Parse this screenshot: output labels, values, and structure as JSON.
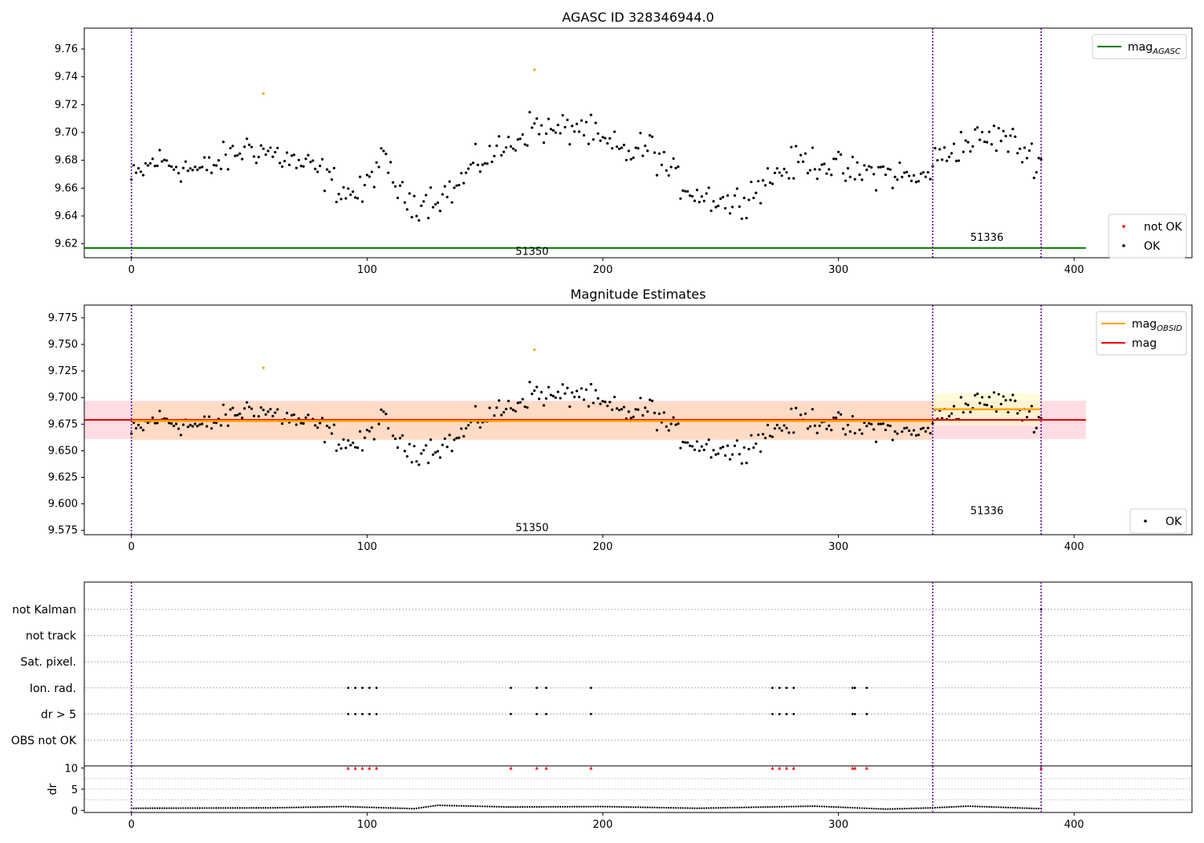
{
  "figure": {
    "panel1_title": "AGASC ID 328346944.0",
    "panel2_title": "Magnitude Estimates"
  },
  "colors": {
    "ok": "#000000",
    "not_ok": "#ff0000",
    "outlier": "#ffa500",
    "agasc": "#008000",
    "obs_mag": "#ffa500",
    "mag": "#ff0000",
    "vline": "#6a0dad",
    "band_global": "#ffc0cb",
    "band_obs1": "#ffdab9",
    "band_obs2": "#fffacd"
  },
  "chart_data": [
    {
      "id": "agasc",
      "type": "scatter",
      "title": "AGASC ID 328346944.0",
      "xlim": [
        -20,
        450
      ],
      "ylim": [
        9.61,
        9.775
      ],
      "xticks": [
        0,
        100,
        200,
        300,
        400
      ],
      "yticks": [
        9.62,
        9.64,
        9.66,
        9.68,
        9.7,
        9.72,
        9.74,
        9.76
      ],
      "ytick_decimals": 2,
      "agasc_mag": 9.617,
      "agasc_xrange": [
        -20,
        405
      ],
      "obsid_boundaries": [
        0,
        340,
        386
      ],
      "obsid_labels": [
        {
          "text": "51350",
          "x": 170,
          "y": 9.615
        },
        {
          "text": "51336",
          "x": 363,
          "y": 9.625
        }
      ],
      "series_ref": "samples",
      "outliers": [
        [
          56,
          9.728
        ],
        [
          171,
          9.745
        ]
      ],
      "legend_upper": [
        {
          "label": "mag",
          "sub": "AGASC",
          "kind": "line",
          "color": "#008000"
        }
      ],
      "legend_lower": [
        {
          "label": "not OK",
          "kind": "dot",
          "color": "#ff0000"
        },
        {
          "label": "OK",
          "kind": "dot",
          "color": "#000000"
        }
      ]
    },
    {
      "id": "estimates",
      "type": "scatter",
      "title": "Magnitude Estimates",
      "xlim": [
        -20,
        450
      ],
      "ylim": [
        9.571,
        9.787
      ],
      "xticks": [
        0,
        100,
        200,
        300,
        400
      ],
      "yticks": [
        9.575,
        9.6,
        9.625,
        9.65,
        9.675,
        9.7,
        9.725,
        9.75,
        9.775
      ],
      "ytick_decimals": 3,
      "global_mag": 9.679,
      "global_band": [
        9.661,
        9.697
      ],
      "global_xrange": [
        -20,
        405
      ],
      "obs_segments": [
        {
          "obsid": "51350",
          "x": [
            0,
            340
          ],
          "mag": 9.678,
          "band": [
            9.66,
            9.696
          ]
        },
        {
          "obsid": "51336",
          "x": [
            340,
            386
          ],
          "mag": 9.689,
          "band": [
            9.674,
            9.704
          ]
        }
      ],
      "obsid_boundaries": [
        0,
        340,
        386
      ],
      "obsid_labels": [
        {
          "text": "51350",
          "x": 170,
          "y": 9.578
        },
        {
          "text": "51336",
          "x": 363,
          "y": 9.594
        }
      ],
      "series_ref": "samples",
      "outliers": [
        [
          56,
          9.728
        ],
        [
          171,
          9.745
        ]
      ],
      "legend_upper": [
        {
          "label": "mag",
          "sub": "OBSID",
          "kind": "line",
          "color": "#ffa500"
        },
        {
          "label": "mag",
          "kind": "line",
          "color": "#ff0000"
        }
      ],
      "legend_lower": [
        {
          "label": "OK",
          "kind": "dot",
          "color": "#000000"
        }
      ]
    },
    {
      "id": "flags",
      "type": "scatter",
      "xlim": [
        -20,
        450
      ],
      "xticks": [
        0,
        100,
        200,
        300,
        400
      ],
      "flag_labels": [
        "not Kalman",
        "not track",
        "Sat. pixel.",
        "Ion. rad.",
        "dr > 5",
        "OBS not OK"
      ],
      "flag_points": {
        "not Kalman": [
          386
        ],
        "not track": [],
        "Sat. pixel.": [],
        "Ion. rad.": [
          92,
          95,
          98,
          101,
          104,
          161,
          172,
          176,
          195,
          272,
          275,
          278,
          281,
          306,
          307,
          312
        ],
        "dr > 5": [
          92,
          95,
          98,
          101,
          104,
          161,
          172,
          176,
          195,
          272,
          275,
          278,
          281,
          306,
          307,
          312
        ],
        "OBS not OK": []
      },
      "dr_ylabel": "dr",
      "dr_ylim": [
        -0.5,
        10.5
      ],
      "dr_yticks": [
        0,
        5,
        10
      ],
      "dr_clipped_x": [
        92,
        95,
        98,
        101,
        104,
        161,
        172,
        176,
        195,
        272,
        275,
        278,
        281,
        306,
        307,
        312,
        386
      ],
      "dr_clip_value": 10,
      "dr_profile": [
        [
          0,
          0.5
        ],
        [
          60,
          0.6
        ],
        [
          90,
          0.9
        ],
        [
          120,
          0.4
        ],
        [
          130,
          1.2
        ],
        [
          160,
          0.8
        ],
        [
          200,
          0.9
        ],
        [
          240,
          0.5
        ],
        [
          290,
          1.0
        ],
        [
          320,
          0.3
        ],
        [
          340,
          0.6
        ],
        [
          355,
          1.0
        ],
        [
          386,
          0.4
        ]
      ],
      "obsid_boundaries": [
        0,
        340,
        386
      ]
    }
  ],
  "samples": {
    "x_range": [
      0,
      386
    ],
    "anchors": [
      [
        0,
        9.665
      ],
      [
        10,
        9.68
      ],
      [
        20,
        9.676
      ],
      [
        30,
        9.672
      ],
      [
        40,
        9.681
      ],
      [
        50,
        9.69
      ],
      [
        60,
        9.685
      ],
      [
        70,
        9.678
      ],
      [
        80,
        9.672
      ],
      [
        90,
        9.658
      ],
      [
        98,
        9.655
      ],
      [
        105,
        9.68
      ],
      [
        110,
        9.672
      ],
      [
        115,
        9.652
      ],
      [
        122,
        9.65
      ],
      [
        130,
        9.654
      ],
      [
        138,
        9.66
      ],
      [
        142,
        9.67
      ],
      [
        150,
        9.682
      ],
      [
        160,
        9.69
      ],
      [
        170,
        9.705
      ],
      [
        180,
        9.7
      ],
      [
        190,
        9.705
      ],
      [
        200,
        9.692
      ],
      [
        210,
        9.685
      ],
      [
        220,
        9.69
      ],
      [
        230,
        9.668
      ],
      [
        240,
        9.656
      ],
      [
        250,
        9.652
      ],
      [
        255,
        9.648
      ],
      [
        265,
        9.66
      ],
      [
        275,
        9.672
      ],
      [
        285,
        9.68
      ],
      [
        295,
        9.678
      ],
      [
        305,
        9.67
      ],
      [
        315,
        9.672
      ],
      [
        325,
        9.67
      ],
      [
        335,
        9.665
      ],
      [
        340,
        9.678
      ],
      [
        350,
        9.69
      ],
      [
        360,
        9.695
      ],
      [
        370,
        9.697
      ],
      [
        380,
        9.685
      ],
      [
        386,
        9.68
      ]
    ],
    "noise_amplitude": 0.011
  }
}
